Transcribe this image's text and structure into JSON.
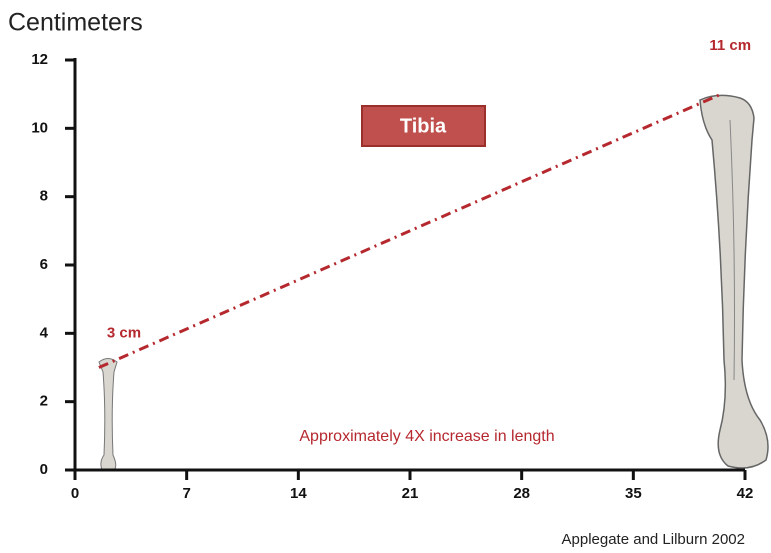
{
  "chart_data": {
    "type": "line",
    "ylabel": "Centimeters",
    "label_box": "Tibia",
    "annotation": "Approximately 4X increase in length",
    "source": "Applegate and Lilburn 2002",
    "x": [
      1.5,
      40.5
    ],
    "values": [
      3,
      11
    ],
    "value_labels": [
      "3 cm",
      "11 cm"
    ],
    "color": "#b5282e",
    "xlim": [
      0,
      42
    ],
    "xticks": [
      0,
      7,
      14,
      21,
      28,
      35,
      42
    ],
    "ylim": [
      0,
      12
    ],
    "yticks": [
      0,
      2,
      4,
      6,
      8,
      10,
      12
    ]
  }
}
